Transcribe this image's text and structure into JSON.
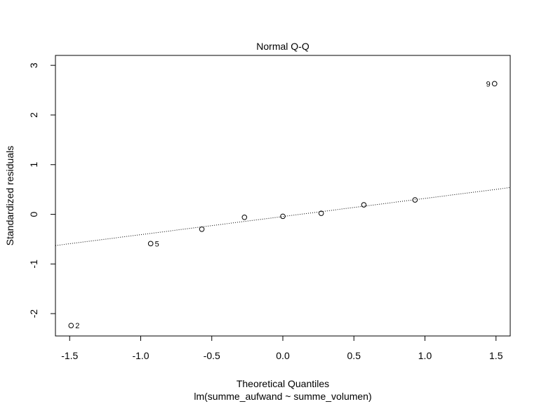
{
  "chart_data": {
    "type": "scatter",
    "title": "Normal Q-Q",
    "xlabel": "Theoretical Quantiles",
    "sublabel": "lm(summe_aufwand ~ summe_volumen)",
    "ylabel": "Standardized residuals",
    "xlim": [
      -1.6,
      1.6
    ],
    "ylim": [
      -2.45,
      3.2
    ],
    "x_ticks": [
      -1.5,
      -1.0,
      -0.5,
      0.0,
      0.5,
      1.0,
      1.5
    ],
    "x_tick_labels": [
      "-1.5",
      "-1.0",
      "-0.5",
      "0.0",
      "0.5",
      "1.0",
      "1.5"
    ],
    "y_ticks": [
      -2,
      -1,
      0,
      1,
      2,
      3
    ],
    "y_tick_labels": [
      "-2",
      "-1",
      "0",
      "1",
      "2",
      "3"
    ],
    "grid": false,
    "points": [
      {
        "x": -1.49,
        "y": -2.24,
        "label": "2",
        "label_side": "right"
      },
      {
        "x": -0.93,
        "y": -0.59,
        "label": "5",
        "label_side": "right"
      },
      {
        "x": -0.57,
        "y": -0.3,
        "label": "",
        "label_side": "right"
      },
      {
        "x": -0.27,
        "y": -0.06,
        "label": "",
        "label_side": "right"
      },
      {
        "x": 0.0,
        "y": -0.04,
        "label": "",
        "label_side": "right"
      },
      {
        "x": 0.27,
        "y": 0.02,
        "label": "",
        "label_side": "right"
      },
      {
        "x": 0.57,
        "y": 0.19,
        "label": "",
        "label_side": "right"
      },
      {
        "x": 0.93,
        "y": 0.29,
        "label": "",
        "label_side": "right"
      },
      {
        "x": 1.49,
        "y": 2.63,
        "label": "9",
        "label_side": "left"
      }
    ],
    "reference_line": {
      "intercept": -0.045,
      "slope": 0.365,
      "style": "dotted"
    }
  }
}
